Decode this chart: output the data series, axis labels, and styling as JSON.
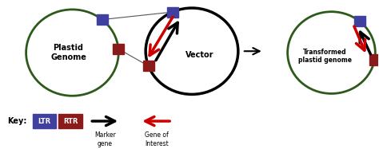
{
  "bg_color": "#ffffff",
  "ltr_color": "#4040a0",
  "rtr_color": "#8b1a1a",
  "marker_color": "#000000",
  "goi_color": "#cc0000",
  "green_color": "#2d5a1a",
  "key_label": "Key:",
  "ltr_label": "LTR",
  "rtr_label": "RTR",
  "marker_label": "Marker\ngene",
  "goi_label": "Gene of\nInterest",
  "plastid_label": "Plastid\nGenome",
  "vector_label": "Vector",
  "transformed_label": "Transformed\nplastid genome"
}
